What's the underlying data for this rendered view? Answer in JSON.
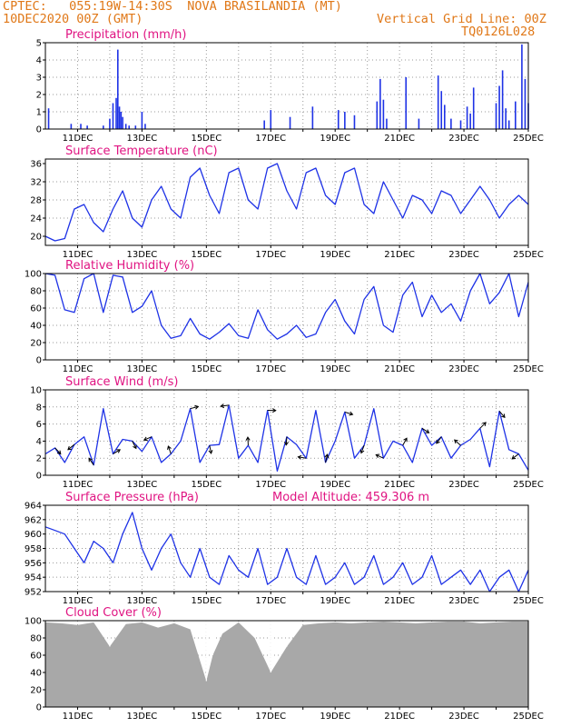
{
  "header": {
    "line1_left": "CPTEC:   055:19W-14:30S  NOVA BRASILANDIA (MT)",
    "line2_left": "10DEC2020 00Z (GMT)",
    "line2_right": "Vertical Grid Line: 00Z",
    "line3_right": "TQ0126L028"
  },
  "colors": {
    "header": "#e07818",
    "title": "#e01482",
    "line": "#1e32e6",
    "cloud": "#a8a8a8",
    "grid": "#999999"
  },
  "x_labels": [
    "11DEC",
    "13DEC",
    "15DEC",
    "17DEC",
    "19DEC",
    "21DEC",
    "23DEC",
    "25DEC"
  ],
  "x_start": "10DEC2020 00Z",
  "x_end": "25DEC2020 00Z",
  "panels": [
    {
      "id": "precip",
      "title": "Precipitation (mm/h)",
      "extra": "",
      "yticks": [
        "0",
        "1",
        "2",
        "3",
        "4",
        "5"
      ]
    },
    {
      "id": "temp",
      "title": "Surface Temperature (nC)",
      "extra": "",
      "yticks": [
        "20",
        "24",
        "28",
        "32",
        "36"
      ]
    },
    {
      "id": "rh",
      "title": "Relative Humidity (%)",
      "extra": "",
      "yticks": [
        "0",
        "20",
        "40",
        "60",
        "80",
        "100"
      ]
    },
    {
      "id": "wind",
      "title": "Surface Wind (m/s)",
      "extra": "",
      "yticks": [
        "0",
        "2",
        "4",
        "6",
        "8",
        "10"
      ]
    },
    {
      "id": "pres",
      "title": "Surface Pressure (hPa)",
      "extra": "Model Altitude: 459.306 m",
      "yticks": [
        "952",
        "954",
        "956",
        "958",
        "960",
        "962",
        "964"
      ]
    },
    {
      "id": "cloud",
      "title": "Cloud Cover (%)",
      "extra": "",
      "yticks": [
        "0",
        "20",
        "40",
        "60",
        "80",
        "100"
      ]
    }
  ],
  "chart_data": [
    {
      "type": "bar",
      "title": "Precipitation (mm/h)",
      "ylim": [
        0,
        5
      ],
      "x": [
        "10.1",
        "10.8",
        "11.1",
        "11.3",
        "11.8",
        "12.0",
        "12.1",
        "12.2",
        "12.25",
        "12.3",
        "12.35",
        "12.4",
        "12.5",
        "12.6",
        "12.8",
        "13.0",
        "13.1",
        "16.8",
        "17.0",
        "17.6",
        "18.3",
        "19.1",
        "19.3",
        "19.6",
        "20.3",
        "20.4",
        "20.5",
        "20.6",
        "21.2",
        "21.6",
        "22.2",
        "22.3",
        "22.4",
        "22.6",
        "22.9",
        "23.1",
        "23.2",
        "23.3",
        "24.0",
        "24.1",
        "24.2",
        "24.3",
        "24.4",
        "24.6",
        "24.8",
        "24.9",
        "25.0"
      ],
      "values": [
        1.2,
        0.3,
        0.3,
        0.2,
        0.2,
        0.6,
        1.5,
        1.8,
        4.6,
        1.3,
        1.0,
        0.7,
        0.3,
        0.2,
        0.2,
        1.0,
        0.3,
        0.5,
        1.1,
        0.7,
        1.3,
        1.1,
        1.0,
        0.8,
        1.6,
        2.9,
        1.7,
        0.6,
        3.0,
        0.6,
        3.1,
        2.2,
        1.4,
        0.6,
        0.5,
        1.3,
        0.9,
        2.4,
        1.5,
        2.5,
        3.4,
        1.2,
        0.5,
        1.6,
        4.9,
        2.9,
        1.5
      ]
    },
    {
      "type": "line",
      "title": "Surface Temperature (nC)",
      "ylim": [
        18,
        37
      ],
      "x": [
        10.0,
        10.3,
        10.6,
        10.9,
        11.2,
        11.5,
        11.8,
        12.1,
        12.4,
        12.7,
        13.0,
        13.3,
        13.6,
        13.9,
        14.2,
        14.5,
        14.8,
        15.1,
        15.4,
        15.7,
        16.0,
        16.3,
        16.6,
        16.9,
        17.2,
        17.5,
        17.8,
        18.1,
        18.4,
        18.7,
        19.0,
        19.3,
        19.6,
        19.9,
        20.2,
        20.5,
        20.8,
        21.1,
        21.4,
        21.7,
        22.0,
        22.3,
        22.6,
        22.9,
        23.2,
        23.5,
        23.8,
        24.1,
        24.4,
        24.7,
        25.0
      ],
      "values": [
        20,
        19,
        19.5,
        26,
        27,
        23,
        21,
        26,
        30,
        24,
        22,
        28,
        31,
        26,
        24,
        33,
        35,
        29,
        25,
        34,
        35,
        28,
        26,
        35,
        36,
        30,
        26,
        34,
        35,
        29,
        27,
        34,
        35,
        27,
        25,
        32,
        28,
        24,
        29,
        28,
        25,
        30,
        29,
        25,
        28,
        31,
        28,
        24,
        27,
        29,
        27
      ]
    },
    {
      "type": "line",
      "title": "Relative Humidity (%)",
      "ylim": [
        0,
        100
      ],
      "x": [
        10.0,
        10.3,
        10.6,
        10.9,
        11.2,
        11.5,
        11.8,
        12.1,
        12.4,
        12.7,
        13.0,
        13.3,
        13.6,
        13.9,
        14.2,
        14.5,
        14.8,
        15.1,
        15.4,
        15.7,
        16.0,
        16.3,
        16.6,
        16.9,
        17.2,
        17.5,
        17.8,
        18.1,
        18.4,
        18.7,
        19.0,
        19.3,
        19.6,
        19.9,
        20.2,
        20.5,
        20.8,
        21.1,
        21.4,
        21.7,
        22.0,
        22.3,
        22.6,
        22.9,
        23.2,
        23.5,
        23.8,
        24.1,
        24.4,
        24.7,
        25.0
      ],
      "values": [
        100,
        98,
        58,
        55,
        94,
        100,
        55,
        98,
        96,
        55,
        62,
        80,
        40,
        25,
        28,
        48,
        30,
        24,
        32,
        42,
        28,
        25,
        58,
        35,
        24,
        30,
        40,
        26,
        30,
        55,
        70,
        45,
        30,
        70,
        85,
        40,
        32,
        75,
        90,
        50,
        75,
        55,
        65,
        45,
        80,
        100,
        65,
        78,
        100,
        50,
        90
      ]
    },
    {
      "type": "line",
      "title": "Surface Wind (m/s)",
      "ylim": [
        0,
        10
      ],
      "x": [
        10.0,
        10.3,
        10.6,
        10.9,
        11.2,
        11.5,
        11.8,
        12.1,
        12.4,
        12.7,
        13.0,
        13.3,
        13.6,
        13.9,
        14.2,
        14.5,
        14.8,
        15.1,
        15.4,
        15.7,
        16.0,
        16.3,
        16.6,
        16.9,
        17.2,
        17.5,
        17.8,
        18.1,
        18.4,
        18.7,
        19.0,
        19.3,
        19.6,
        19.9,
        20.2,
        20.5,
        20.8,
        21.1,
        21.4,
        21.7,
        22.0,
        22.3,
        22.6,
        22.9,
        23.2,
        23.5,
        23.8,
        24.1,
        24.4,
        24.7,
        25.0
      ],
      "values": [
        2.5,
        3.2,
        1.5,
        3.6,
        4.5,
        1.2,
        7.8,
        2.5,
        4.2,
        4.0,
        2.8,
        4.5,
        1.5,
        2.5,
        4.0,
        7.8,
        1.5,
        3.5,
        3.6,
        8.2,
        2.0,
        3.5,
        1.5,
        7.6,
        0.5,
        4.5,
        3.6,
        2.0,
        7.6,
        1.5,
        4.0,
        7.4,
        2.0,
        3.5,
        7.8,
        2.0,
        4.0,
        3.5,
        1.5,
        5.5,
        3.5,
        4.5,
        2.0,
        3.5,
        4.2,
        5.5,
        1.0,
        7.5,
        3.0,
        2.5,
        0.6
      ]
    },
    {
      "type": "line",
      "title": "Surface Pressure (hPa)",
      "ylim": [
        952,
        964
      ],
      "x": [
        10.0,
        10.3,
        10.6,
        10.9,
        11.2,
        11.5,
        11.8,
        12.1,
        12.4,
        12.7,
        13.0,
        13.3,
        13.6,
        13.9,
        14.2,
        14.5,
        14.8,
        15.1,
        15.4,
        15.7,
        16.0,
        16.3,
        16.6,
        16.9,
        17.2,
        17.5,
        17.8,
        18.1,
        18.4,
        18.7,
        19.0,
        19.3,
        19.6,
        19.9,
        20.2,
        20.5,
        20.8,
        21.1,
        21.4,
        21.7,
        22.0,
        22.3,
        22.6,
        22.9,
        23.2,
        23.5,
        23.8,
        24.1,
        24.4,
        24.7,
        25.0
      ],
      "values": [
        961,
        960.5,
        960,
        958,
        956,
        959,
        958,
        956,
        960,
        963,
        958,
        955,
        958,
        960,
        956,
        954,
        958,
        954,
        953,
        957,
        955,
        954,
        958,
        953,
        954,
        958,
        954,
        953,
        957,
        953,
        954,
        956,
        953,
        954,
        957,
        953,
        954,
        956,
        953,
        954,
        957,
        953,
        954,
        955,
        953,
        955,
        952,
        954,
        955,
        952,
        955
      ]
    },
    {
      "type": "bar",
      "title": "Cloud Cover (%)",
      "ylim": [
        0,
        100
      ],
      "x": [
        10.0,
        10.5,
        11.0,
        11.5,
        12.0,
        12.5,
        13.0,
        13.5,
        14.0,
        14.5,
        15.0,
        15.2,
        15.5,
        16.0,
        16.5,
        17.0,
        17.5,
        18.0,
        18.5,
        19.0,
        19.5,
        20.0,
        20.5,
        21.0,
        21.5,
        22.0,
        22.5,
        23.0,
        23.5,
        24.0,
        24.5,
        25.0
      ],
      "values": [
        98,
        97,
        95,
        98,
        70,
        96,
        98,
        92,
        97,
        90,
        30,
        60,
        85,
        98,
        80,
        40,
        70,
        95,
        97,
        98,
        97,
        98,
        99,
        98,
        97,
        98,
        99,
        99,
        97,
        98,
        99,
        99
      ]
    }
  ]
}
